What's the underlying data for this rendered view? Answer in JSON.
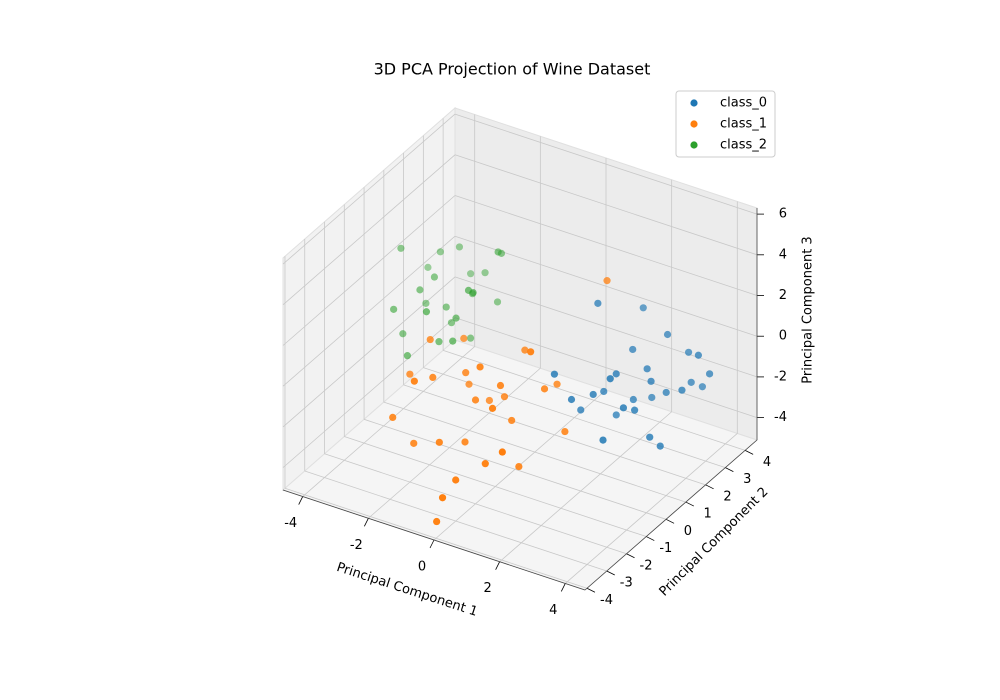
{
  "chart_data": {
    "type": "scatter3d",
    "title": "3D PCA Projection of Wine Dataset",
    "x_label": "Principal Component 1",
    "y_label": "Principal Component 2",
    "z_label": "Principal Component 3",
    "xlim": [
      -4.6,
      4.6
    ],
    "ylim": [
      -4.1,
      4.6
    ],
    "zlim": [
      -5.1,
      6.3
    ],
    "xticks": [
      -4,
      -2,
      0,
      2,
      4
    ],
    "yticks": [
      -4,
      -3,
      -2,
      -1,
      0,
      1,
      2,
      3,
      4
    ],
    "zticks": [
      -4,
      -2,
      0,
      2,
      4,
      6
    ],
    "grid": true,
    "legend": "upper right",
    "series": [
      {
        "name": "class_0",
        "color": "#1f77b4",
        "x": [
          3.3,
          2.2,
          3.8,
          2.5,
          3.1,
          4.2,
          2.9,
          1.9,
          3.5,
          2.7,
          3.6,
          1.5,
          2.4,
          3.0,
          4.0,
          2.1,
          3.4,
          2.8,
          1.8,
          3.9,
          2.6,
          3.2,
          2.3,
          4.3,
          1.7,
          3.0,
          2.9,
          3.7
        ],
        "y": [
          1.4,
          0.3,
          2.6,
          1.8,
          0.9,
          2.3,
          2.1,
          -0.3,
          1.0,
          1.5,
          2.8,
          -0.5,
          2.5,
          0.5,
          1.8,
          1.0,
          2.0,
          -0.2,
          1.2,
          3.0,
          0.8,
          2.4,
          1.3,
          2.7,
          0.5,
          1.7,
          0.0,
          1.2
        ],
        "z": [
          -0.2,
          -0.5,
          -1.0,
          0.6,
          -1.3,
          0.8,
          -1.8,
          -0.4,
          -2.5,
          -1.5,
          0.2,
          0.8,
          2.0,
          -0.9,
          -0.6,
          -1.0,
          -1.2,
          -2.0,
          3.0,
          -1.5,
          0.3,
          1.2,
          -2.3,
          -0.4,
          -1.7,
          0.0,
          0.9,
          -3.0
        ]
      },
      {
        "name": "class_1",
        "color": "#ff7f0e",
        "x": [
          0.0,
          -1.0,
          0.8,
          -0.5,
          1.5,
          -1.5,
          0.3,
          -0.8,
          1.0,
          2.0,
          -0.2,
          0.6,
          -1.8,
          1.2,
          -0.6,
          0.2,
          1.8,
          -1.2,
          0.9,
          -0.3,
          0.5,
          -2.0,
          1.4,
          -0.9,
          0.4,
          2.2,
          -1.4,
          0.7,
          -0.1,
          1.6
        ],
        "y": [
          -2.0,
          -2.5,
          -1.5,
          -3.0,
          -1.0,
          -1.8,
          -3.5,
          -1.0,
          -2.8,
          -0.8,
          -2.2,
          -0.5,
          -3.2,
          -1.8,
          -1.5,
          -4.0,
          -2.2,
          -0.6,
          -3.0,
          -0.8,
          -2.6,
          -2.0,
          -0.2,
          -3.6,
          -1.2,
          1.0,
          -2.8,
          -1.9,
          -3.8,
          -3.3
        ],
        "z": [
          0.0,
          1.0,
          -1.0,
          -1.5,
          0.5,
          2.0,
          -2.5,
          -0.5,
          0.8,
          -1.5,
          -2.0,
          1.5,
          -0.8,
          -2.8,
          0.6,
          -3.0,
          3.5,
          1.2,
          -1.8,
          -1.2,
          2.4,
          0.2,
          0.0,
          1.8,
          -0.3,
          4.5,
          -2.2,
          1.0,
          -4.5,
          -0.6
        ]
      },
      {
        "name": "class_2",
        "color": "#2ca02c",
        "x": [
          -3.0,
          -3.5,
          -2.5,
          -4.0,
          -2.8,
          -3.2,
          -2.0,
          -3.8,
          -2.6,
          -3.4,
          -1.8,
          -2.2,
          -3.6,
          -2.9,
          -4.2,
          -2.4,
          -3.1,
          -1.6,
          -3.9,
          -2.7,
          -2.1,
          -3.3,
          -1.9,
          -4.1,
          -2.5
        ],
        "y": [
          1.5,
          1.0,
          2.0,
          0.5,
          0.8,
          2.5,
          1.2,
          1.8,
          2.8,
          0.2,
          2.3,
          0.5,
          2.2,
          1.6,
          1.2,
          1.0,
          2.9,
          1.8,
          0.8,
          0.0,
          2.6,
          1.4,
          0.8,
          2.4,
          1.9
        ],
        "z": [
          0.0,
          1.0,
          0.5,
          0.2,
          -1.0,
          2.0,
          1.5,
          -0.5,
          0.8,
          -1.5,
          2.6,
          -0.4,
          1.8,
          -0.8,
          2.5,
          0.2,
          0.4,
          3.2,
          -1.2,
          1.2,
          -0.2,
          1.4,
          2.0,
          0.6,
          -1.6
        ]
      }
    ]
  }
}
